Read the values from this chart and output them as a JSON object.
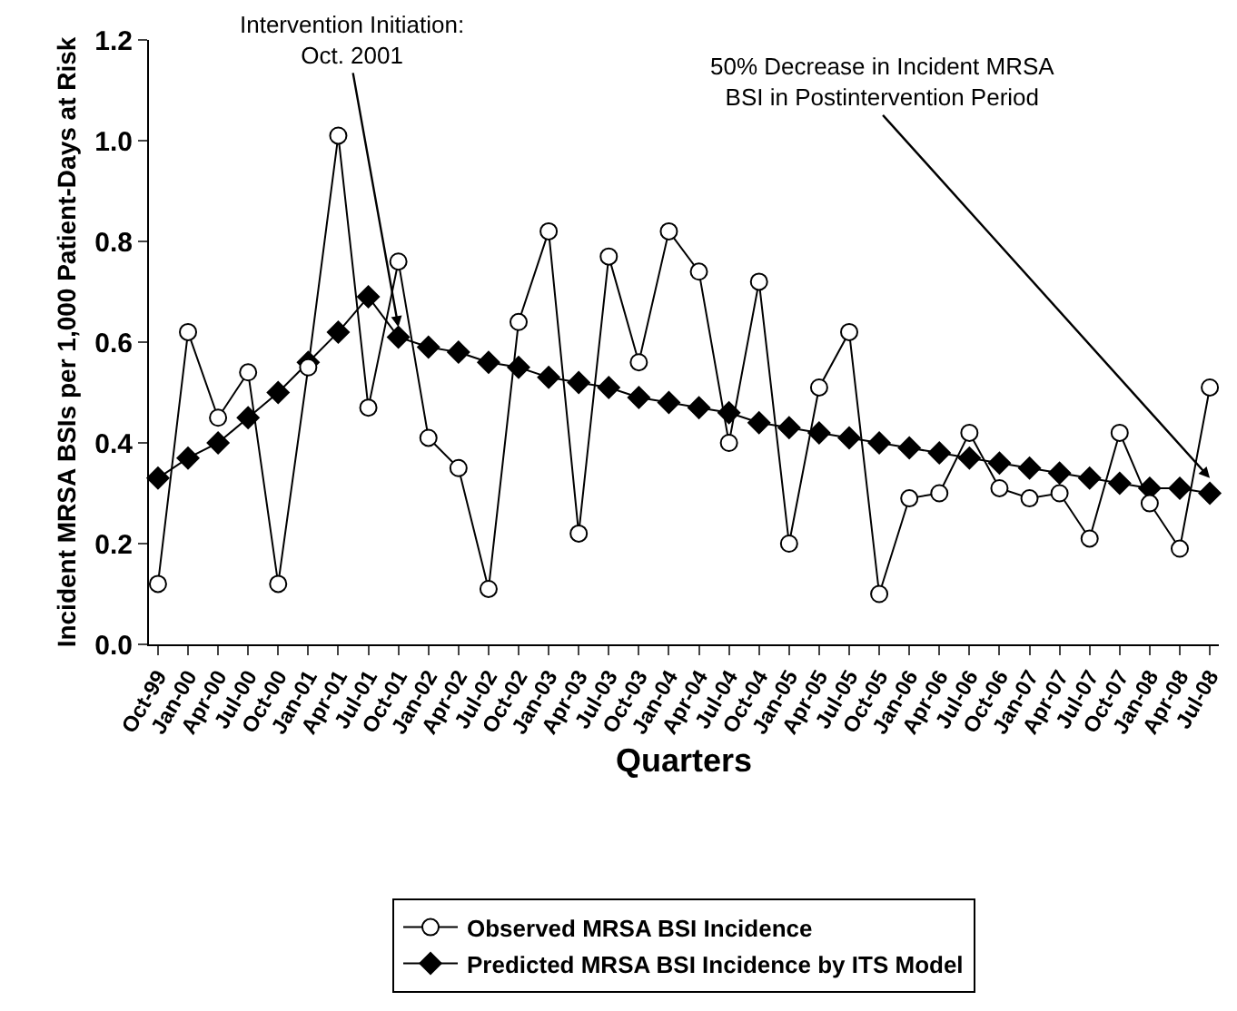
{
  "chart_data": {
    "type": "line",
    "xlabel": "Quarters",
    "ylabel": "Incident MRSA BSIs per 1,000 Patient-Days at Risk",
    "categories": [
      "Oct-99",
      "Jan-00",
      "Apr-00",
      "Jul-00",
      "Oct-00",
      "Jan-01",
      "Apr-01",
      "Jul-01",
      "Oct-01",
      "Jan-02",
      "Apr-02",
      "Jul-02",
      "Oct-02",
      "Jan-03",
      "Apr-03",
      "Jul-03",
      "Oct-03",
      "Jan-04",
      "Apr-04",
      "Jul-04",
      "Oct-04",
      "Jan-05",
      "Apr-05",
      "Jul-05",
      "Oct-05",
      "Jan-06",
      "Apr-06",
      "Jul-06",
      "Oct-06",
      "Jan-07",
      "Apr-07",
      "Jul-07",
      "Oct-07",
      "Jan-08",
      "Apr-08",
      "Jul-08"
    ],
    "series": [
      {
        "name": "Observed MRSA BSI Incidence",
        "color": "#000000",
        "marker": "circle",
        "values": [
          0.12,
          0.62,
          0.45,
          0.54,
          0.12,
          0.55,
          1.01,
          0.47,
          0.76,
          0.41,
          0.35,
          0.11,
          0.64,
          0.82,
          0.22,
          0.77,
          0.56,
          0.82,
          0.74,
          0.4,
          0.72,
          0.2,
          0.51,
          0.62,
          0.1,
          0.29,
          0.3,
          0.42,
          0.31,
          0.29,
          0.3,
          0.21,
          0.42,
          0.28,
          0.19,
          0.51
        ]
      },
      {
        "name": "Predicted MRSA BSI Incidence by ITS Model",
        "color": "#000000",
        "marker": "diamond",
        "values": [
          0.33,
          0.37,
          0.4,
          0.45,
          0.5,
          0.56,
          0.62,
          0.69,
          0.61,
          0.59,
          0.58,
          0.56,
          0.55,
          0.53,
          0.52,
          0.51,
          0.49,
          0.48,
          0.47,
          0.46,
          0.44,
          0.43,
          0.42,
          0.41,
          0.4,
          0.39,
          0.38,
          0.37,
          0.36,
          0.35,
          0.34,
          0.33,
          0.32,
          0.31,
          0.31,
          0.3
        ]
      }
    ],
    "ylim": [
      0,
      1.2
    ],
    "yticks": [
      {
        "value": 0,
        "label": "0.0"
      },
      {
        "value": 0.2,
        "label": "0.2"
      },
      {
        "value": 0.4,
        "label": "0.4"
      },
      {
        "value": 0.6,
        "label": "0.6"
      },
      {
        "value": 0.8,
        "label": "0.8"
      },
      {
        "value": 1.0,
        "label": "1.0"
      },
      {
        "value": 1.2,
        "label": "1.2"
      }
    ],
    "grid": false,
    "legend": "bottom",
    "line_style": "solid",
    "annotations": [
      {
        "text": "Intervention Initiation:\nOct. 2001",
        "x": "Oct-01",
        "y": 0.63
      },
      {
        "text": "50% Decrease in Incident MRSA\nBSI in Postintervention Period",
        "x": "Jul-08",
        "y": 0.33
      }
    ]
  }
}
